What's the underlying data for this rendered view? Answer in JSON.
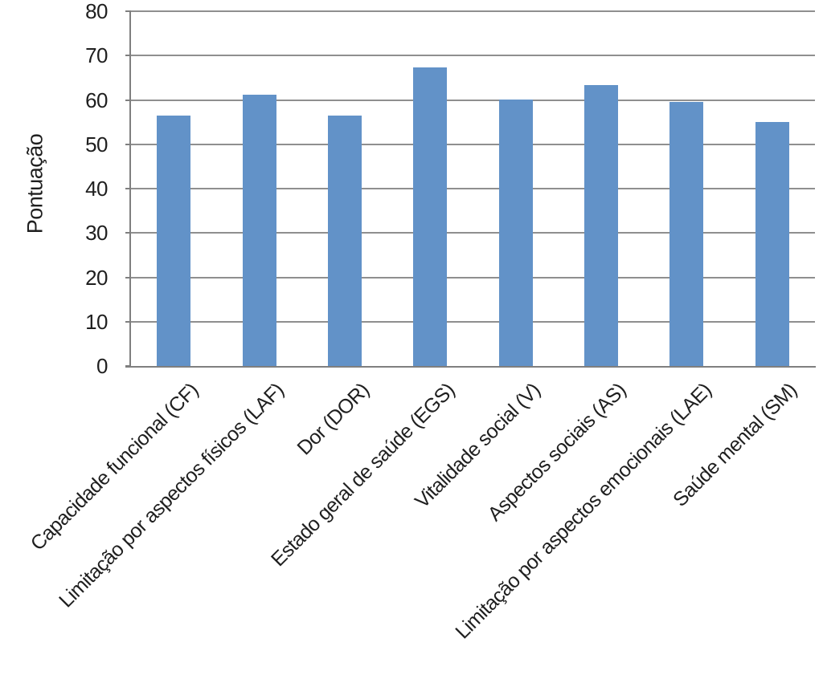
{
  "chart_data": {
    "type": "bar",
    "title": "",
    "xlabel": "",
    "ylabel": "Pontuação",
    "ylim": [
      0,
      80
    ],
    "yticks": [
      0,
      10,
      20,
      30,
      40,
      50,
      60,
      70,
      80
    ],
    "grid": true,
    "legend": false,
    "categories": [
      "Capacidade funcional (CF)",
      "Limitação por aspectos físicos (LAF)",
      "Dor (DOR)",
      "Estado geral de saúde (EGS)",
      "Vitalidade social (V)",
      "Aspectos sociais (AS)",
      "Limitação por aspectos emocionais (LAE)",
      "Saúde mental (SM)"
    ],
    "values": [
      56.5,
      61.2,
      56.5,
      67.3,
      60.1,
      63.4,
      59.6,
      55.1
    ]
  },
  "colors": {
    "bar": "#6292c8",
    "gridline": "#8f8f8f",
    "axis": "#7f7f7f",
    "text": "#1f1f1f",
    "background": "#ffffff"
  }
}
